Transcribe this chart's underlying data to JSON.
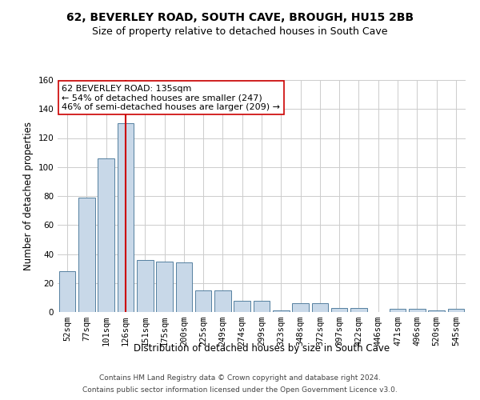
{
  "title": "62, BEVERLEY ROAD, SOUTH CAVE, BROUGH, HU15 2BB",
  "subtitle": "Size of property relative to detached houses in South Cave",
  "xlabel": "Distribution of detached houses by size in South Cave",
  "ylabel": "Number of detached properties",
  "categories": [
    "52sqm",
    "77sqm",
    "101sqm",
    "126sqm",
    "151sqm",
    "175sqm",
    "200sqm",
    "225sqm",
    "249sqm",
    "274sqm",
    "299sqm",
    "323sqm",
    "348sqm",
    "372sqm",
    "397sqm",
    "422sqm",
    "446sqm",
    "471sqm",
    "496sqm",
    "520sqm",
    "545sqm"
  ],
  "values": [
    28,
    79,
    106,
    130,
    36,
    35,
    34,
    15,
    15,
    8,
    8,
    1,
    6,
    6,
    3,
    3,
    0,
    2,
    2,
    1,
    2
  ],
  "bar_color": "#c8d8e8",
  "bar_edge_color": "#5580a0",
  "highlight_bar_index": 3,
  "highlight_line_color": "#cc0000",
  "ylim": [
    0,
    160
  ],
  "yticks": [
    0,
    20,
    40,
    60,
    80,
    100,
    120,
    140,
    160
  ],
  "annotation_text": "62 BEVERLEY ROAD: 135sqm\n← 54% of detached houses are smaller (247)\n46% of semi-detached houses are larger (209) →",
  "annotation_box_color": "#ffffff",
  "annotation_box_edge": "#cc0000",
  "footer_line1": "Contains HM Land Registry data © Crown copyright and database right 2024.",
  "footer_line2": "Contains public sector information licensed under the Open Government Licence v3.0.",
  "background_color": "#ffffff",
  "grid_color": "#cccccc",
  "title_fontsize": 10,
  "subtitle_fontsize": 9,
  "axis_label_fontsize": 8.5,
  "tick_fontsize": 7.5,
  "annotation_fontsize": 8,
  "footer_fontsize": 6.5
}
